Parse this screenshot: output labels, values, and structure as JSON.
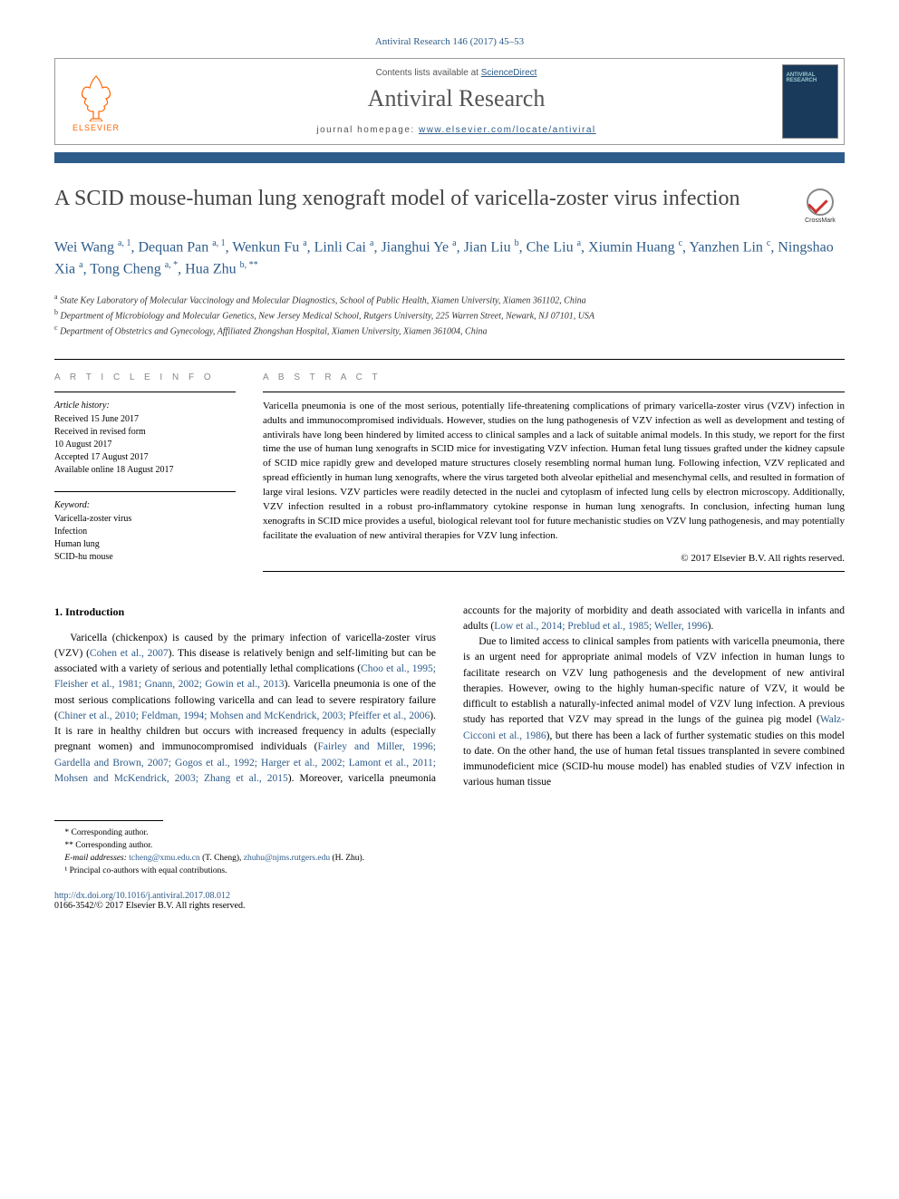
{
  "citation": "Antiviral Research 146 (2017) 45–53",
  "header": {
    "logo_text": "ELSEVIER",
    "contents_prefix": "Contents lists available at ",
    "contents_link": "ScienceDirect",
    "journal_name": "Antiviral Research",
    "homepage_prefix": "journal homepage: ",
    "homepage_url": "www.elsevier.com/locate/antiviral",
    "cover_label": "ANTIVIRAL RESEARCH"
  },
  "crossmark_label": "CrossMark",
  "title": "A SCID mouse-human lung xenograft model of varicella-zoster virus infection",
  "authors_html": "Wei Wang <sup>a, 1</sup>, Dequan Pan <sup>a, 1</sup>, Wenkun Fu <sup>a</sup>, Linli Cai <sup>a</sup>, Jianghui Ye <sup>a</sup>, Jian Liu <sup>b</sup>, Che Liu <sup>a</sup>, Xiumin Huang <sup>c</sup>, Yanzhen Lin <sup>c</sup>, Ningshao Xia <sup>a</sup>, Tong Cheng <sup>a, *</sup>, Hua Zhu <sup>b, **</sup>",
  "affiliations": [
    {
      "marker": "a",
      "text": "State Key Laboratory of Molecular Vaccinology and Molecular Diagnostics, School of Public Health, Xiamen University, Xiamen 361102, China"
    },
    {
      "marker": "b",
      "text": "Department of Microbiology and Molecular Genetics, New Jersey Medical School, Rutgers University, 225 Warren Street, Newark, NJ 07101, USA"
    },
    {
      "marker": "c",
      "text": "Department of Obstetrics and Gynecology, Affiliated Zhongshan Hospital, Xiamen University, Xiamen 361004, China"
    }
  ],
  "article_info": {
    "label": "A R T I C L E   I N F O",
    "history_header": "Article history:",
    "history": [
      "Received 15 June 2017",
      "Received in revised form",
      "10 August 2017",
      "Accepted 17 August 2017",
      "Available online 18 August 2017"
    ],
    "keyword_header": "Keyword:",
    "keywords": [
      "Varicella-zoster virus",
      "Infection",
      "Human lung",
      "SCID-hu mouse"
    ]
  },
  "abstract": {
    "label": "A B S T R A C T",
    "text": "Varicella pneumonia is one of the most serious, potentially life-threatening complications of primary varicella-zoster virus (VZV) infection in adults and immunocompromised individuals. However, studies on the lung pathogenesis of VZV infection as well as development and testing of antivirals have long been hindered by limited access to clinical samples and a lack of suitable animal models. In this study, we report for the first time the use of human lung xenografts in SCID mice for investigating VZV infection. Human fetal lung tissues grafted under the kidney capsule of SCID mice rapidly grew and developed mature structures closely resembling normal human lung. Following infection, VZV replicated and spread efficiently in human lung xenografts, where the virus targeted both alveolar epithelial and mesenchymal cells, and resulted in formation of large viral lesions. VZV particles were readily detected in the nuclei and cytoplasm of infected lung cells by electron microscopy. Additionally, VZV infection resulted in a robust pro-inflammatory cytokine response in human lung xenografts. In conclusion, infecting human lung xenografts in SCID mice provides a useful, biological relevant tool for future mechanistic studies on VZV lung pathogenesis, and may potentially facilitate the evaluation of new antiviral therapies for VZV lung infection.",
    "copyright": "© 2017 Elsevier B.V. All rights reserved."
  },
  "body": {
    "section_number": "1.",
    "section_title": "Introduction",
    "para1_pre": "Varicella (chickenpox) is caused by the primary infection of varicella-zoster virus (VZV) (",
    "para1_ref1": "Cohen et al., 2007",
    "para1_mid1": "). This disease is relatively benign and self-limiting but can be associated with a variety of serious and potentially lethal complications (",
    "para1_ref2": "Choo et al., 1995; Fleisher et al., 1981; Gnann, 2002; Gowin et al., 2013",
    "para1_mid2": "). Varicella pneumonia is one of the most serious complications following varicella and can lead to severe respiratory failure (",
    "para1_ref3": "Chiner et al., 2010; Feldman, 1994; Mohsen and McKendrick, 2003; Pfeiffer et al., 2006",
    "para1_mid3": "). It is rare in healthy children but occurs with increased frequency in adults (especially pregnant women) and immunocompromised individuals (",
    "para1_ref4": "Fairley and Miller, 1996; Gardella and Brown, 2007; Gogos et al., 1992; Harger et al., 2002; Lamont et al., 2011; Mohsen and McKendrick, 2003; Zhang et al., 2015",
    "para1_mid4": "). Moreover, varicella pneumonia accounts for the majority of morbidity and death associated with varicella in infants and adults (",
    "para1_ref5": "Low et al., 2014; Preblud et al., 1985; Weller, 1996",
    "para1_end": ").",
    "para2_pre": "Due to limited access to clinical samples from patients with varicella pneumonia, there is an urgent need for appropriate animal models of VZV infection in human lungs to facilitate research on VZV lung pathogenesis and the development of new antiviral therapies. However, owing to the highly human-specific nature of VZV, it would be difficult to establish a naturally-infected animal model of VZV lung infection. A previous study has reported that VZV may spread in the lungs of the guinea pig model (",
    "para2_ref1": "Walz-Cicconi et al., 1986",
    "para2_end": "), but there has been a lack of further systematic studies on this model to date. On the other hand, the use of human fetal tissues transplanted in severe combined immunodeficient mice (SCID-hu mouse model) has enabled studies of VZV infection in various human tissue"
  },
  "footnotes": {
    "corr1": "* Corresponding author.",
    "corr2": "** Corresponding author.",
    "email_label": "E-mail addresses:",
    "email1": "tcheng@xmu.edu.cn",
    "email1_name": "(T. Cheng),",
    "email2": "zhuhu@njms.rutgers.edu",
    "email2_name": "(H. Zhu).",
    "note1": "¹ Principal co-authors with equal contributions."
  },
  "footer": {
    "doi": "http://dx.doi.org/10.1016/j.antiviral.2017.08.012",
    "copyright": "0166-3542/© 2017 Elsevier B.V. All rights reserved."
  },
  "colors": {
    "link": "#2e5c8a",
    "orange": "#ff6600",
    "bar": "#2e5c8a",
    "text_gray": "#555"
  }
}
